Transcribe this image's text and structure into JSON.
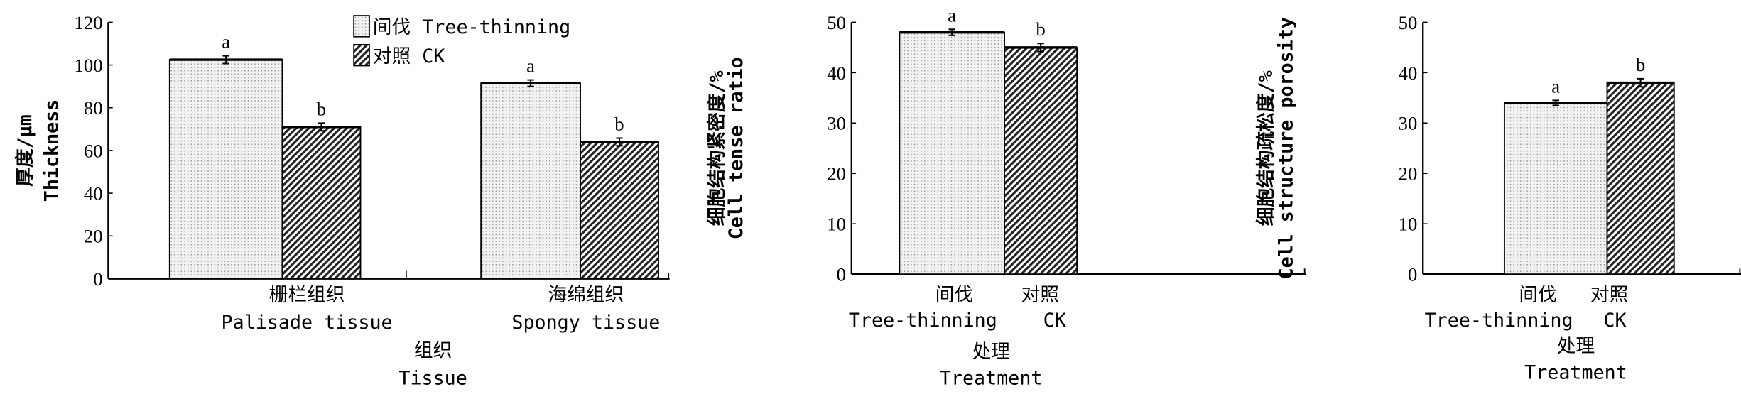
{
  "legend": {
    "tree_thinning": "间伐 Tree-thinning",
    "ck": "对照 CK"
  },
  "colors": {
    "tree_thinning_fill": "#ececec",
    "ck_fill": "#555555",
    "axis": "#000000"
  },
  "chart_data": [
    {
      "type": "bar",
      "ylabel_cn": "厚度/μm",
      "ylabel_en": "Thickness",
      "xlabel_cn": "组织",
      "xlabel_en": "Tissue",
      "ylim": [
        0,
        120
      ],
      "yticks": [
        "0",
        "20",
        "40",
        "60",
        "80",
        "100",
        "120"
      ],
      "categories": [
        {
          "cn": "栅栏组织",
          "en": "Palisade tissue"
        },
        {
          "cn": "海绵组织",
          "en": "Spongy tissue"
        }
      ],
      "series": [
        {
          "name": "间伐 Tree-thinning",
          "values": [
            102.5,
            91.5
          ],
          "errors": [
            1.8,
            1.5
          ],
          "letters": [
            "a",
            "a"
          ]
        },
        {
          "name": "对照 CK",
          "values": [
            71,
            64
          ],
          "errors": [
            1.8,
            1.8
          ],
          "letters": [
            "b",
            "b"
          ]
        }
      ]
    },
    {
      "type": "bar",
      "ylabel_cn": "细胞结构紧密度/%",
      "ylabel_en": "Cell tense ratio",
      "xlabel_cn": "处理",
      "xlabel_en": "Treatment",
      "ylim": [
        0,
        50
      ],
      "yticks": [
        "0",
        "10",
        "20",
        "30",
        "40",
        "50"
      ],
      "categories": [
        {
          "cn": "间伐",
          "en": "Tree-thinning"
        },
        {
          "cn": "对照",
          "en": "CK"
        }
      ],
      "values": [
        48,
        45
      ],
      "errors": [
        0.6,
        0.8
      ],
      "letters": [
        "a",
        "b"
      ]
    },
    {
      "type": "bar",
      "ylabel_cn": "细胞结构疏松度/%",
      "ylabel_en": "Cell structure porosity",
      "xlabel_cn": "处理",
      "xlabel_en": "Treatment",
      "ylim": [
        0,
        50
      ],
      "yticks": [
        "0",
        "10",
        "20",
        "30",
        "40",
        "50"
      ],
      "categories": [
        {
          "cn": "间伐",
          "en": "Tree-thinning"
        },
        {
          "cn": "对照",
          "en": "CK"
        }
      ],
      "values": [
        34,
        38
      ],
      "errors": [
        0.5,
        0.8
      ],
      "letters": [
        "a",
        "b"
      ]
    }
  ]
}
